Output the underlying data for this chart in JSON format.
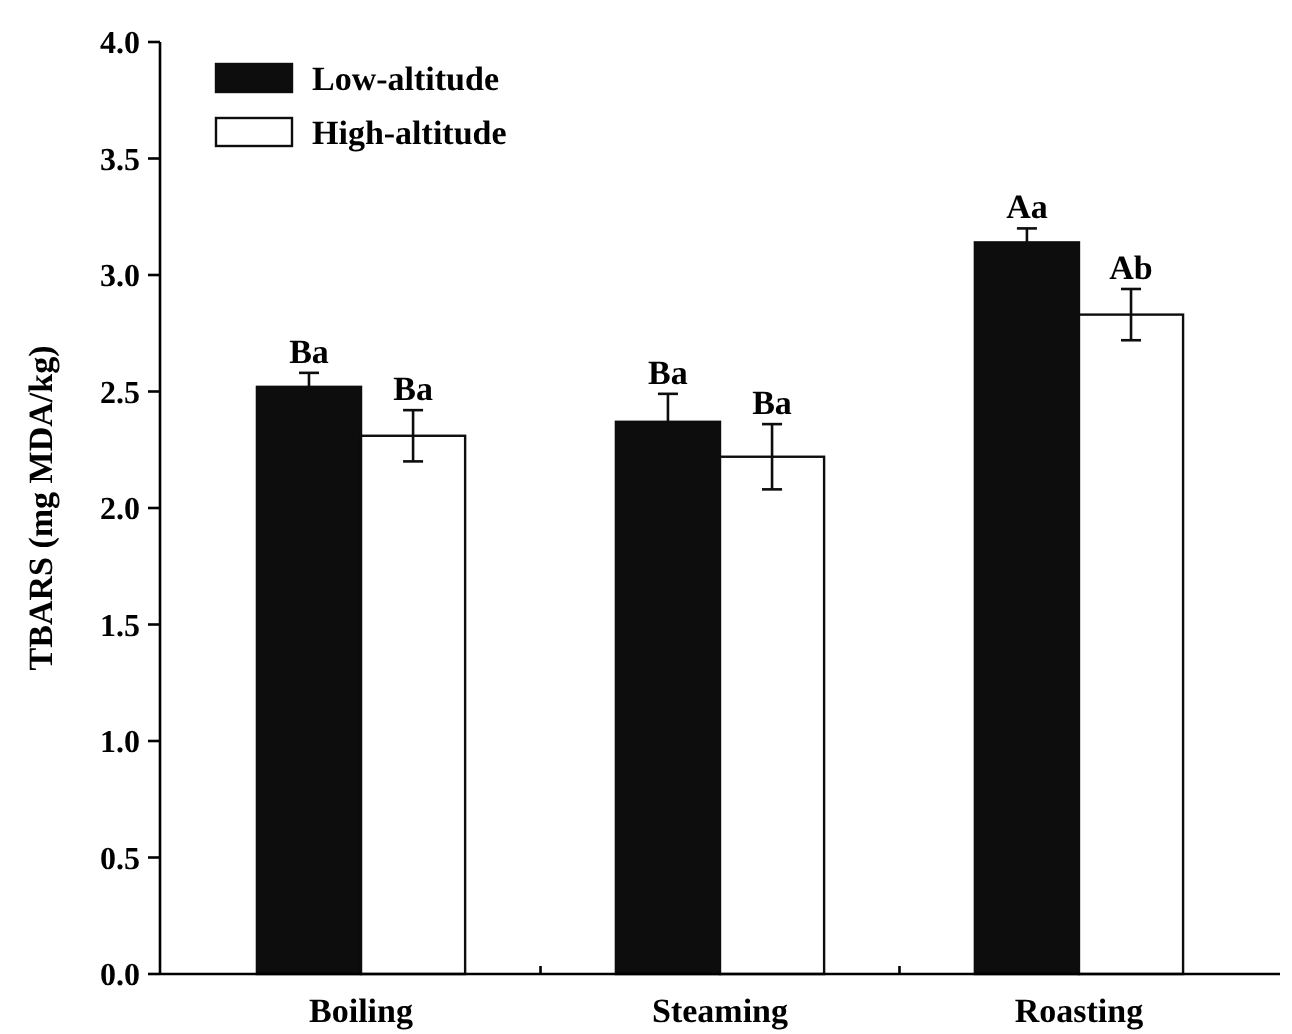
{
  "chart_data": {
    "type": "bar",
    "ylabel": "TBARS (mg MDA/kg)",
    "categories": [
      "Boiling",
      "Steaming",
      "Roasting"
    ],
    "series": [
      {
        "name": "Low-altitude",
        "color": "#0d0d0d",
        "values": [
          2.52,
          2.37,
          3.14
        ],
        "errors": [
          0.06,
          0.12,
          0.06
        ],
        "value_labels": [
          "Ba",
          "Ba",
          "Aa"
        ]
      },
      {
        "name": "High-altitude",
        "color": "#ffffff",
        "values": [
          2.31,
          2.22,
          2.83
        ],
        "errors": [
          0.11,
          0.14,
          0.11
        ],
        "value_labels": [
          "Ba",
          "Ba",
          "Ab"
        ]
      }
    ],
    "ylim": [
      0,
      4.0
    ],
    "yticks": [
      {
        "value": 0,
        "label": "0.0"
      },
      0.5,
      {
        "value": 1,
        "label": "1.0"
      },
      1.5,
      {
        "value": 2,
        "label": "2.0"
      },
      2.5,
      {
        "value": 3,
        "label": "3.0"
      },
      3.5,
      {
        "value": 4,
        "label": "4.0"
      }
    ],
    "legend": "top left",
    "grid": false
  }
}
